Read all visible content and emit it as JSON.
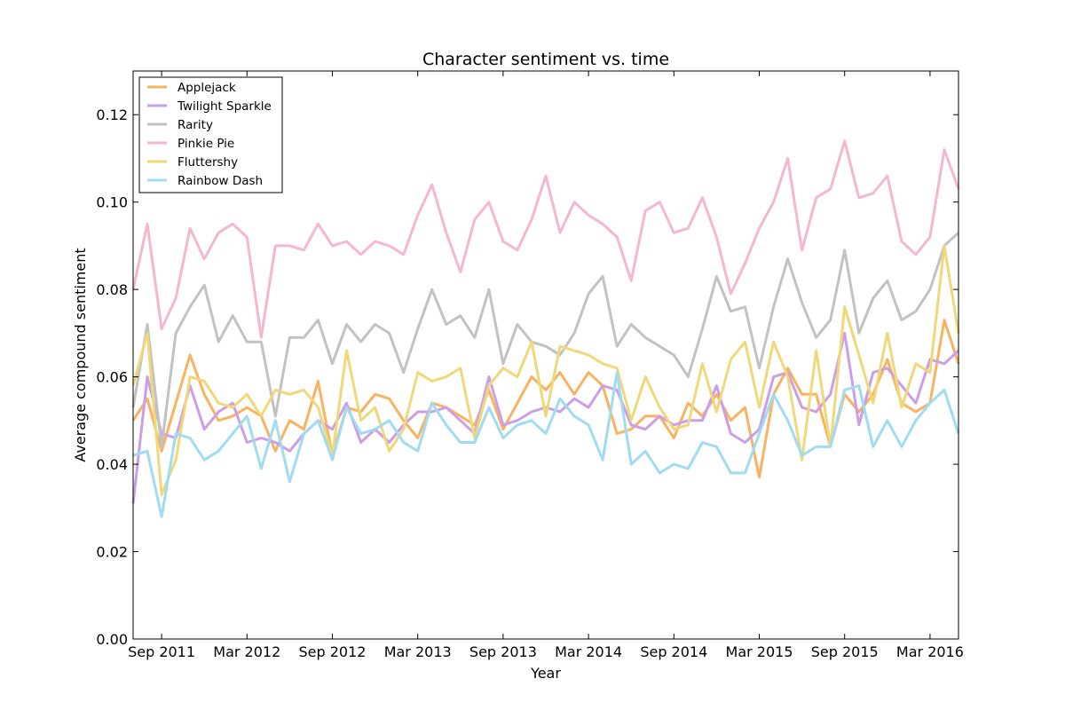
{
  "chart_data": {
    "type": "line",
    "title": "Character sentiment vs. time",
    "xlabel": "Year",
    "ylabel": "Average compound sentiment",
    "ylim": [
      0,
      0.13
    ],
    "y_ticks": [
      "0.00",
      "0.02",
      "0.04",
      "0.06",
      "0.08",
      "0.10",
      "0.12"
    ],
    "x_ticks": [
      "Sep 2011",
      "Mar 2012",
      "Sep 2012",
      "Mar 2013",
      "Sep 2013",
      "Mar 2014",
      "Sep 2014",
      "Mar 2015",
      "Sep 2015",
      "Mar 2016"
    ],
    "x_range": [
      "Jul 2011",
      "May 2016"
    ],
    "grid": false,
    "legend_position": "top-left",
    "colors": {
      "Applejack": "#f9b360",
      "Twilight Sparkle": "#cc9ee8",
      "Rarity": "#c2c2c2",
      "Pinkie Pie": "#f5b6d1",
      "Fluttershy": "#efd87a",
      "Rainbow Dash": "#9fdcf2"
    },
    "series": [
      {
        "name": "Applejack",
        "values": [
          0.05,
          0.055,
          0.043,
          0.054,
          0.065,
          0.056,
          0.05,
          0.051,
          0.053,
          0.051,
          0.043,
          0.05,
          0.048,
          0.059,
          0.042,
          0.053,
          0.052,
          0.056,
          0.055,
          0.05,
          0.046,
          0.054,
          0.053,
          0.051,
          0.049,
          0.057,
          0.048,
          0.054,
          0.06,
          0.057,
          0.061,
          0.056,
          0.061,
          0.058,
          0.047,
          0.048,
          0.051,
          0.051,
          0.046,
          0.054,
          0.051,
          0.056,
          0.05,
          0.053,
          0.037,
          0.056,
          0.062,
          0.056,
          0.056,
          0.044,
          0.056,
          0.052,
          0.056,
          0.064,
          0.054,
          0.052,
          0.054,
          0.073,
          0.063
        ]
      },
      {
        "name": "Twilight Sparkle",
        "values": [
          0.031,
          0.06,
          0.047,
          0.046,
          0.058,
          0.048,
          0.052,
          0.054,
          0.045,
          0.046,
          0.045,
          0.043,
          0.047,
          0.05,
          0.048,
          0.054,
          0.045,
          0.048,
          0.045,
          0.049,
          0.052,
          0.052,
          0.053,
          0.05,
          0.047,
          0.06,
          0.049,
          0.05,
          0.052,
          0.053,
          0.052,
          0.055,
          0.053,
          0.058,
          0.057,
          0.049,
          0.048,
          0.051,
          0.049,
          0.05,
          0.05,
          0.058,
          0.047,
          0.045,
          0.048,
          0.06,
          0.061,
          0.053,
          0.052,
          0.056,
          0.07,
          0.049,
          0.061,
          0.062,
          0.058,
          0.054,
          0.064,
          0.063,
          0.066
        ]
      },
      {
        "name": "Rarity",
        "values": [
          0.053,
          0.072,
          0.044,
          0.07,
          0.076,
          0.081,
          0.068,
          0.074,
          0.068,
          0.068,
          0.051,
          0.069,
          0.069,
          0.073,
          0.063,
          0.072,
          0.068,
          0.072,
          0.07,
          0.061,
          0.071,
          0.08,
          0.072,
          0.074,
          0.069,
          0.08,
          0.063,
          0.072,
          0.068,
          0.067,
          0.065,
          0.07,
          0.079,
          0.083,
          0.067,
          0.072,
          0.069,
          0.067,
          0.065,
          0.06,
          0.071,
          0.083,
          0.075,
          0.076,
          0.062,
          0.076,
          0.087,
          0.077,
          0.069,
          0.073,
          0.089,
          0.07,
          0.078,
          0.082,
          0.073,
          0.075,
          0.08,
          0.09,
          0.093
        ]
      },
      {
        "name": "Pinkie Pie",
        "values": [
          0.08,
          0.095,
          0.071,
          0.078,
          0.094,
          0.087,
          0.093,
          0.095,
          0.092,
          0.069,
          0.09,
          0.09,
          0.089,
          0.095,
          0.09,
          0.091,
          0.088,
          0.091,
          0.09,
          0.088,
          0.097,
          0.104,
          0.093,
          0.084,
          0.096,
          0.1,
          0.091,
          0.089,
          0.096,
          0.106,
          0.093,
          0.1,
          0.097,
          0.095,
          0.092,
          0.082,
          0.098,
          0.1,
          0.093,
          0.094,
          0.101,
          0.092,
          0.079,
          0.086,
          0.094,
          0.1,
          0.11,
          0.089,
          0.101,
          0.103,
          0.114,
          0.101,
          0.102,
          0.106,
          0.091,
          0.088,
          0.092,
          0.112,
          0.103
        ]
      },
      {
        "name": "Fluttershy",
        "values": [
          0.058,
          0.07,
          0.033,
          0.041,
          0.06,
          0.059,
          0.054,
          0.053,
          0.056,
          0.051,
          0.057,
          0.056,
          0.057,
          0.053,
          0.042,
          0.066,
          0.05,
          0.053,
          0.043,
          0.048,
          0.061,
          0.059,
          0.06,
          0.062,
          0.046,
          0.058,
          0.062,
          0.06,
          0.068,
          0.051,
          0.067,
          0.066,
          0.065,
          0.063,
          0.062,
          0.05,
          0.06,
          0.053,
          0.048,
          0.049,
          0.063,
          0.052,
          0.064,
          0.068,
          0.053,
          0.068,
          0.06,
          0.041,
          0.066,
          0.044,
          0.076,
          0.065,
          0.054,
          0.07,
          0.053,
          0.063,
          0.061,
          0.09,
          0.07
        ]
      },
      {
        "name": "Rainbow Dash",
        "values": [
          0.042,
          0.043,
          0.028,
          0.047,
          0.046,
          0.041,
          0.043,
          0.047,
          0.051,
          0.039,
          0.05,
          0.036,
          0.047,
          0.05,
          0.041,
          0.053,
          0.047,
          0.048,
          0.05,
          0.045,
          0.043,
          0.054,
          0.049,
          0.045,
          0.045,
          0.053,
          0.046,
          0.049,
          0.05,
          0.047,
          0.055,
          0.051,
          0.049,
          0.041,
          0.061,
          0.04,
          0.043,
          0.038,
          0.04,
          0.039,
          0.045,
          0.044,
          0.038,
          0.038,
          0.047,
          0.056,
          0.05,
          0.042,
          0.044,
          0.044,
          0.057,
          0.058,
          0.044,
          0.05,
          0.044,
          0.05,
          0.054,
          0.057,
          0.047
        ]
      }
    ]
  }
}
